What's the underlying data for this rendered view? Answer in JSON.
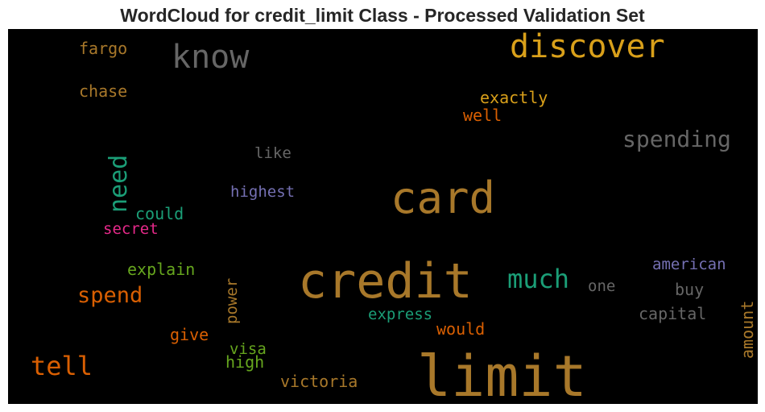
{
  "chart_data": {
    "type": "wordcloud",
    "title": "WordCloud for credit_limit Class - Processed Validation Set",
    "background": "#000000",
    "words": [
      {
        "text": "limit",
        "color": "#a8782a",
        "orientation": "horizontal"
      },
      {
        "text": "credit",
        "color": "#a8782a",
        "orientation": "horizontal"
      },
      {
        "text": "card",
        "color": "#a8782a",
        "orientation": "horizontal"
      },
      {
        "text": "discover",
        "color": "#d9a01a",
        "orientation": "horizontal"
      },
      {
        "text": "know",
        "color": "#666666",
        "orientation": "horizontal"
      },
      {
        "text": "much",
        "color": "#1b9e77",
        "orientation": "horizontal"
      },
      {
        "text": "need",
        "color": "#1b9e77",
        "orientation": "vertical"
      },
      {
        "text": "spending",
        "color": "#666666",
        "orientation": "horizontal"
      },
      {
        "text": "tell",
        "color": "#d95f02",
        "orientation": "horizontal"
      },
      {
        "text": "spend",
        "color": "#d95f02",
        "orientation": "horizontal"
      },
      {
        "text": "exactly",
        "color": "#d9a01a",
        "orientation": "horizontal"
      },
      {
        "text": "well",
        "color": "#d95f02",
        "orientation": "horizontal"
      },
      {
        "text": "fargo",
        "color": "#a8782a",
        "orientation": "horizontal"
      },
      {
        "text": "chase",
        "color": "#a8782a",
        "orientation": "horizontal"
      },
      {
        "text": "like",
        "color": "#666666",
        "orientation": "horizontal"
      },
      {
        "text": "highest",
        "color": "#7570b3",
        "orientation": "horizontal"
      },
      {
        "text": "could",
        "color": "#1b9e77",
        "orientation": "horizontal"
      },
      {
        "text": "secret",
        "color": "#e7298a",
        "orientation": "horizontal"
      },
      {
        "text": "explain",
        "color": "#66a61e",
        "orientation": "horizontal"
      },
      {
        "text": "american",
        "color": "#7570b3",
        "orientation": "horizontal"
      },
      {
        "text": "one",
        "color": "#666666",
        "orientation": "horizontal"
      },
      {
        "text": "buy",
        "color": "#666666",
        "orientation": "horizontal"
      },
      {
        "text": "capital",
        "color": "#666666",
        "orientation": "horizontal"
      },
      {
        "text": "express",
        "color": "#1b9e77",
        "orientation": "horizontal"
      },
      {
        "text": "would",
        "color": "#d95f02",
        "orientation": "horizontal"
      },
      {
        "text": "power",
        "color": "#a8782a",
        "orientation": "vertical"
      },
      {
        "text": "give",
        "color": "#d95f02",
        "orientation": "horizontal"
      },
      {
        "text": "visa",
        "color": "#66a61e",
        "orientation": "horizontal"
      },
      {
        "text": "high",
        "color": "#66a61e",
        "orientation": "horizontal"
      },
      {
        "text": "victoria",
        "color": "#a8782a",
        "orientation": "horizontal"
      },
      {
        "text": "amount",
        "color": "#a8782a",
        "orientation": "vertical"
      }
    ]
  }
}
